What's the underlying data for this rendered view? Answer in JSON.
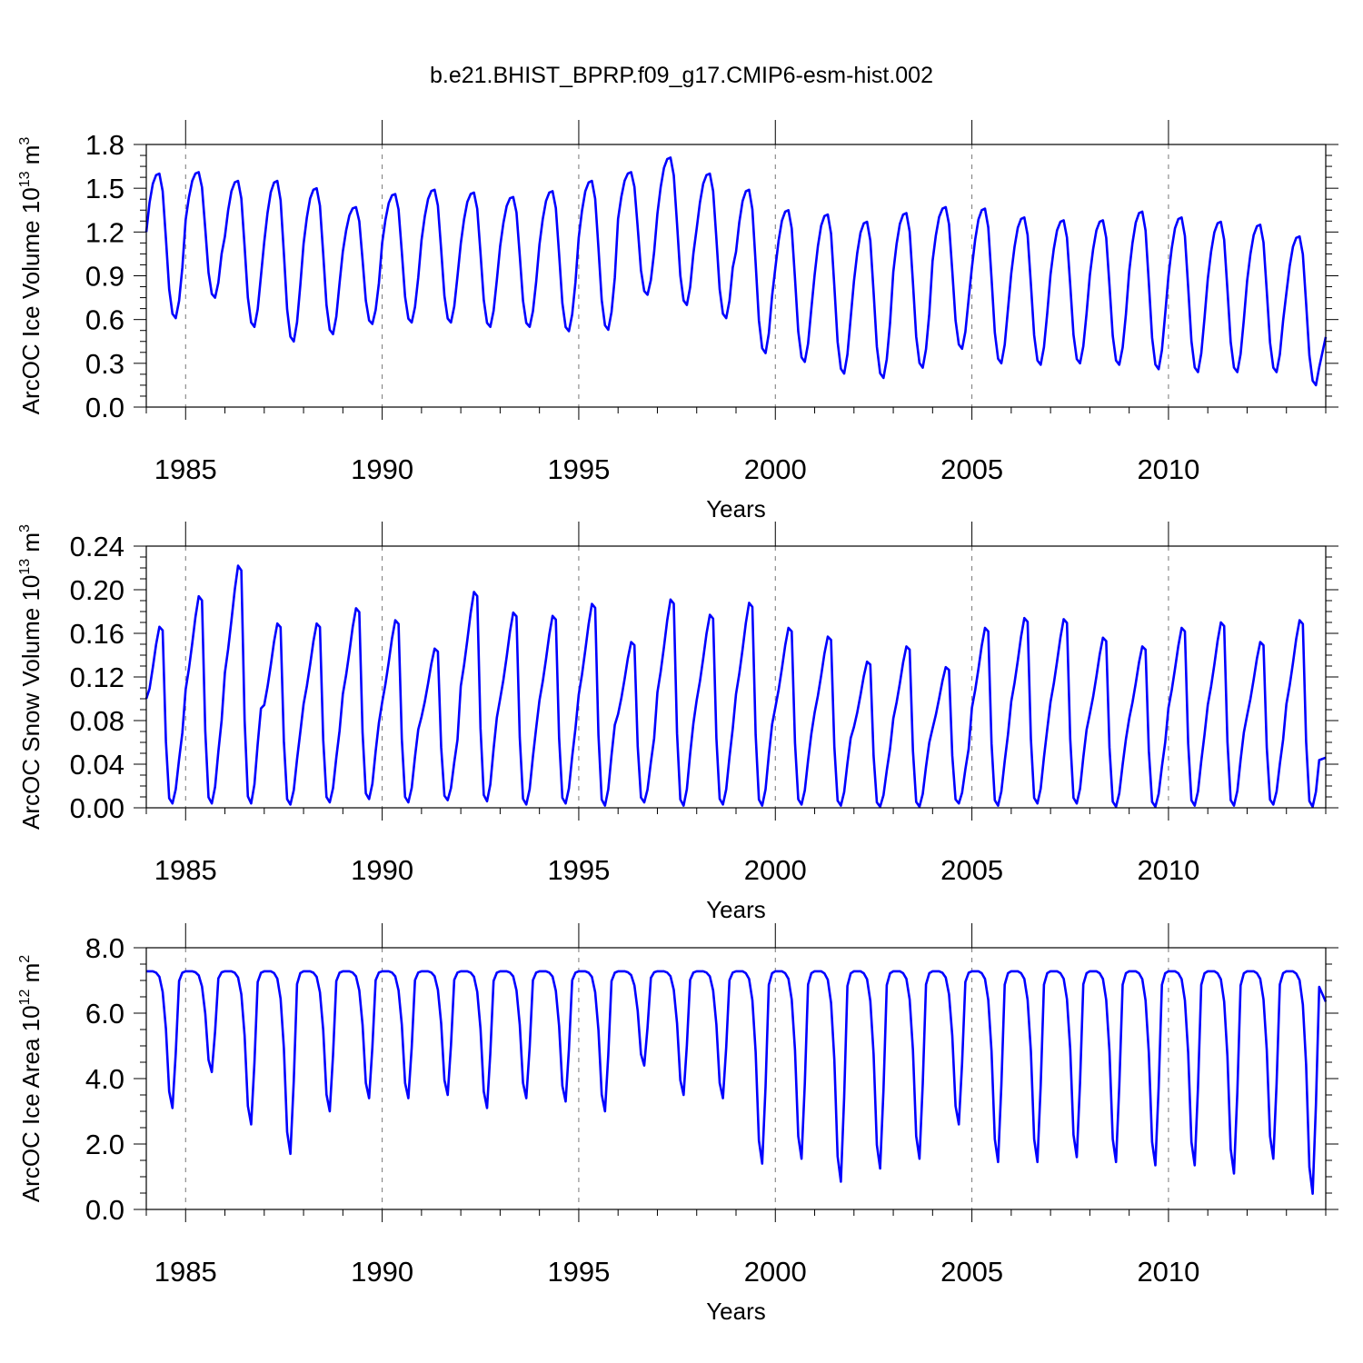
{
  "title": "b.e21.BHIST_BPRP.f09_g17.CMIP6-esm-hist.002",
  "colors": {
    "series": "#0000ff",
    "axis": "#000000",
    "grid": "#777777"
  },
  "chart_data": [
    {
      "type": "line",
      "name": "ice-volume",
      "ylabel_main": "ArcOC Ice Volume 10",
      "ylabel_exp": "13",
      "ylabel_unit": " m",
      "ylabel_unit_exp": "3",
      "xlabel": "Years",
      "xlim": [
        1984.0,
        2014.0
      ],
      "ylim": [
        0.0,
        1.8
      ],
      "yticks": [
        "0.0",
        "0.3",
        "0.6",
        "0.9",
        "1.2",
        "1.5",
        "1.8"
      ],
      "ytick_values": [
        0.0,
        0.3,
        0.6,
        0.9,
        1.2,
        1.5,
        1.8
      ],
      "xticks": [
        "1985",
        "1990",
        "1995",
        "2000",
        "2005",
        "2010"
      ],
      "xtick_values": [
        1985,
        1990,
        1995,
        2000,
        2005,
        2010
      ],
      "grid": "vertical dashed at major x ticks",
      "yearly_max": [
        1.6,
        1.61,
        1.55,
        1.55,
        1.5,
        1.37,
        1.46,
        1.49,
        1.47,
        1.44,
        1.48,
        1.55,
        1.61,
        1.71,
        1.6,
        1.49,
        1.35,
        1.32,
        1.27,
        1.33,
        1.37,
        1.36,
        1.3,
        1.28,
        1.28,
        1.34,
        1.3,
        1.27,
        1.25,
        1.17
      ],
      "yearly_min": [
        0.61,
        0.75,
        0.55,
        0.45,
        0.5,
        0.57,
        0.58,
        0.58,
        0.55,
        0.55,
        0.52,
        0.53,
        0.77,
        0.7,
        0.61,
        0.37,
        0.31,
        0.23,
        0.2,
        0.27,
        0.4,
        0.3,
        0.29,
        0.3,
        0.29,
        0.26,
        0.24,
        0.24,
        0.24,
        0.15
      ],
      "start_value": 1.2,
      "end_value": 0.48
    },
    {
      "type": "line",
      "name": "snow-volume",
      "ylabel_main": "ArcOC Snow Volume 10",
      "ylabel_exp": "13",
      "ylabel_unit": " m",
      "ylabel_unit_exp": "3",
      "xlabel": "Years",
      "xlim": [
        1984.0,
        2014.0
      ],
      "ylim": [
        0.0,
        0.24
      ],
      "yticks": [
        "0.00",
        "0.04",
        "0.08",
        "0.12",
        "0.16",
        "0.20",
        "0.24"
      ],
      "ytick_values": [
        0.0,
        0.04,
        0.08,
        0.12,
        0.16,
        0.2,
        0.24
      ],
      "xticks": [
        "1985",
        "1990",
        "1995",
        "2000",
        "2005",
        "2010"
      ],
      "xtick_values": [
        1985,
        1990,
        1995,
        2000,
        2005,
        2010
      ],
      "grid": "vertical dashed at major x ticks",
      "yearly_max": [
        0.166,
        0.194,
        0.222,
        0.169,
        0.169,
        0.183,
        0.172,
        0.146,
        0.198,
        0.179,
        0.176,
        0.187,
        0.152,
        0.191,
        0.177,
        0.188,
        0.165,
        0.157,
        0.134,
        0.148,
        0.129,
        0.165,
        0.174,
        0.173,
        0.156,
        0.148,
        0.165,
        0.17,
        0.152,
        0.172
      ],
      "yearly_min": [
        0.004,
        0.004,
        0.004,
        0.003,
        0.005,
        0.008,
        0.005,
        0.007,
        0.006,
        0.003,
        0.004,
        0.002,
        0.005,
        0.002,
        0.003,
        0.002,
        0.003,
        0.002,
        0.001,
        0.001,
        0.004,
        0.002,
        0.004,
        0.004,
        0.001,
        0.001,
        0.002,
        0.002,
        0.003,
        0.001
      ],
      "start_value": 0.1,
      "end_value": 0.046
    },
    {
      "type": "line",
      "name": "ice-area",
      "ylabel_main": "ArcOC Ice Area 10",
      "ylabel_exp": "12",
      "ylabel_unit": " m",
      "ylabel_unit_exp": "2",
      "xlabel": "Years",
      "xlim": [
        1984.0,
        2014.0
      ],
      "ylim": [
        0.0,
        8.0
      ],
      "yticks": [
        "0.0",
        "2.0",
        "4.0",
        "6.0",
        "8.0"
      ],
      "ytick_values": [
        0.0,
        2.0,
        4.0,
        6.0,
        8.0
      ],
      "xticks": [
        "1985",
        "1990",
        "1995",
        "2000",
        "2005",
        "2010"
      ],
      "xtick_values": [
        1985,
        1990,
        1995,
        2000,
        2005,
        2010
      ],
      "grid": "vertical dashed at major x ticks",
      "yearly_max": [
        7.28,
        7.28,
        7.28,
        7.28,
        7.28,
        7.28,
        7.28,
        7.28,
        7.28,
        7.28,
        7.28,
        7.28,
        7.28,
        7.28,
        7.28,
        7.28,
        7.28,
        7.28,
        7.28,
        7.28,
        7.28,
        7.28,
        7.28,
        7.28,
        7.28,
        7.28,
        7.28,
        7.28,
        7.28,
        7.28
      ],
      "yearly_min": [
        3.1,
        4.2,
        2.6,
        1.7,
        3.0,
        3.4,
        3.4,
        3.5,
        3.1,
        3.4,
        3.3,
        3.0,
        4.4,
        3.5,
        3.4,
        1.4,
        1.55,
        0.85,
        1.25,
        1.55,
        2.6,
        1.45,
        1.45,
        1.6,
        1.45,
        1.35,
        1.35,
        1.1,
        1.55,
        0.48
      ],
      "start_value": 7.28,
      "end_value": 6.35
    }
  ]
}
